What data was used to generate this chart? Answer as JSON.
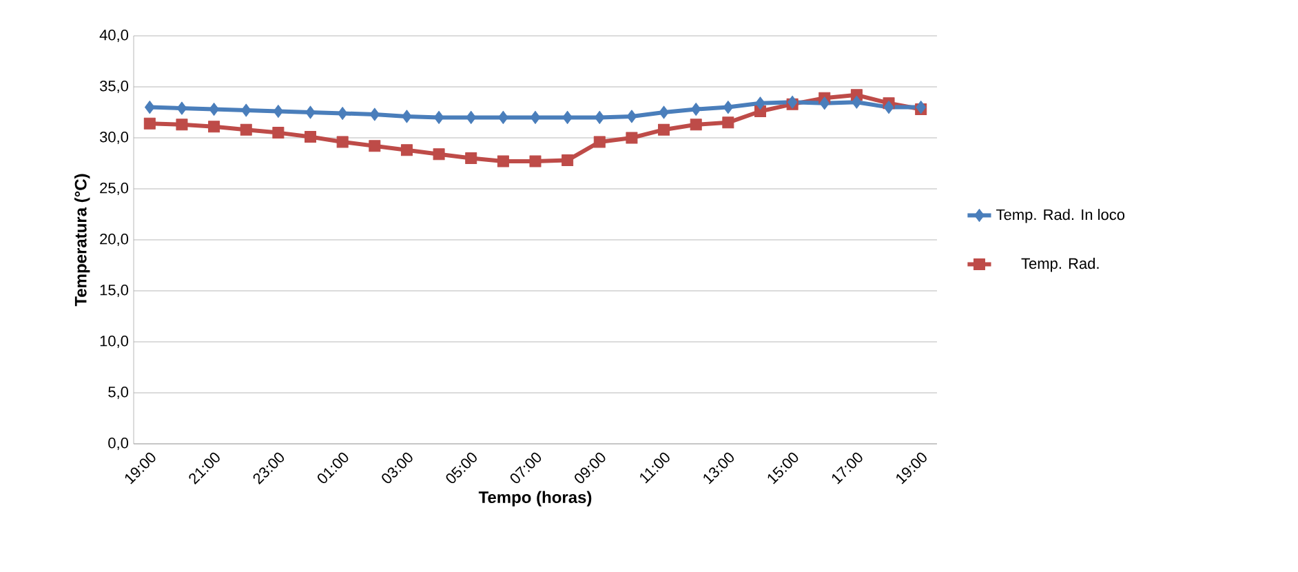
{
  "chart_data": {
    "type": "line",
    "xlabel": "Tempo (horas)",
    "ylabel": "Temperatura (°C)",
    "categories": [
      "19:00",
      null,
      "21:00",
      null,
      "23:00",
      null,
      "01:00",
      null,
      "03:00",
      null,
      "05:00",
      null,
      "07:00",
      null,
      "09:00",
      null,
      "11:00",
      null,
      "13:00",
      null,
      "15:00",
      null,
      "17:00",
      null,
      "19:00"
    ],
    "series": [
      {
        "name": "Temp. Rad. In loco",
        "color": "#4a7ebb",
        "marker": "diamond",
        "values": [
          33.0,
          32.9,
          32.8,
          32.7,
          32.6,
          32.5,
          32.4,
          32.3,
          32.1,
          32.0,
          32.0,
          32.0,
          32.0,
          32.0,
          32.0,
          32.1,
          32.5,
          32.8,
          33.0,
          33.4,
          33.5,
          33.4,
          33.5,
          33.0,
          33.0
        ]
      },
      {
        "name": "Temp. Rad.",
        "color": "#be4b48",
        "marker": "square",
        "values": [
          31.4,
          31.3,
          31.1,
          30.8,
          30.5,
          30.1,
          29.6,
          29.2,
          28.8,
          28.4,
          28.0,
          27.7,
          27.7,
          27.8,
          29.6,
          30.0,
          30.8,
          31.3,
          31.5,
          32.6,
          33.3,
          33.9,
          34.2,
          33.4,
          32.8
        ]
      }
    ],
    "ylim": [
      0,
      40
    ],
    "yticks": [
      {
        "value": 0,
        "label": "0,0"
      },
      {
        "value": 5,
        "label": "5,0"
      },
      {
        "value": 10,
        "label": "10,0"
      },
      {
        "value": 15,
        "label": "15,0"
      },
      {
        "value": 20,
        "label": "20,0"
      },
      {
        "value": 25,
        "label": "25,0"
      },
      {
        "value": 30,
        "label": "30,0"
      },
      {
        "value": 35,
        "label": "35,0"
      },
      {
        "value": 40,
        "label": "40,0"
      }
    ],
    "grid": "y",
    "legend": "right"
  }
}
